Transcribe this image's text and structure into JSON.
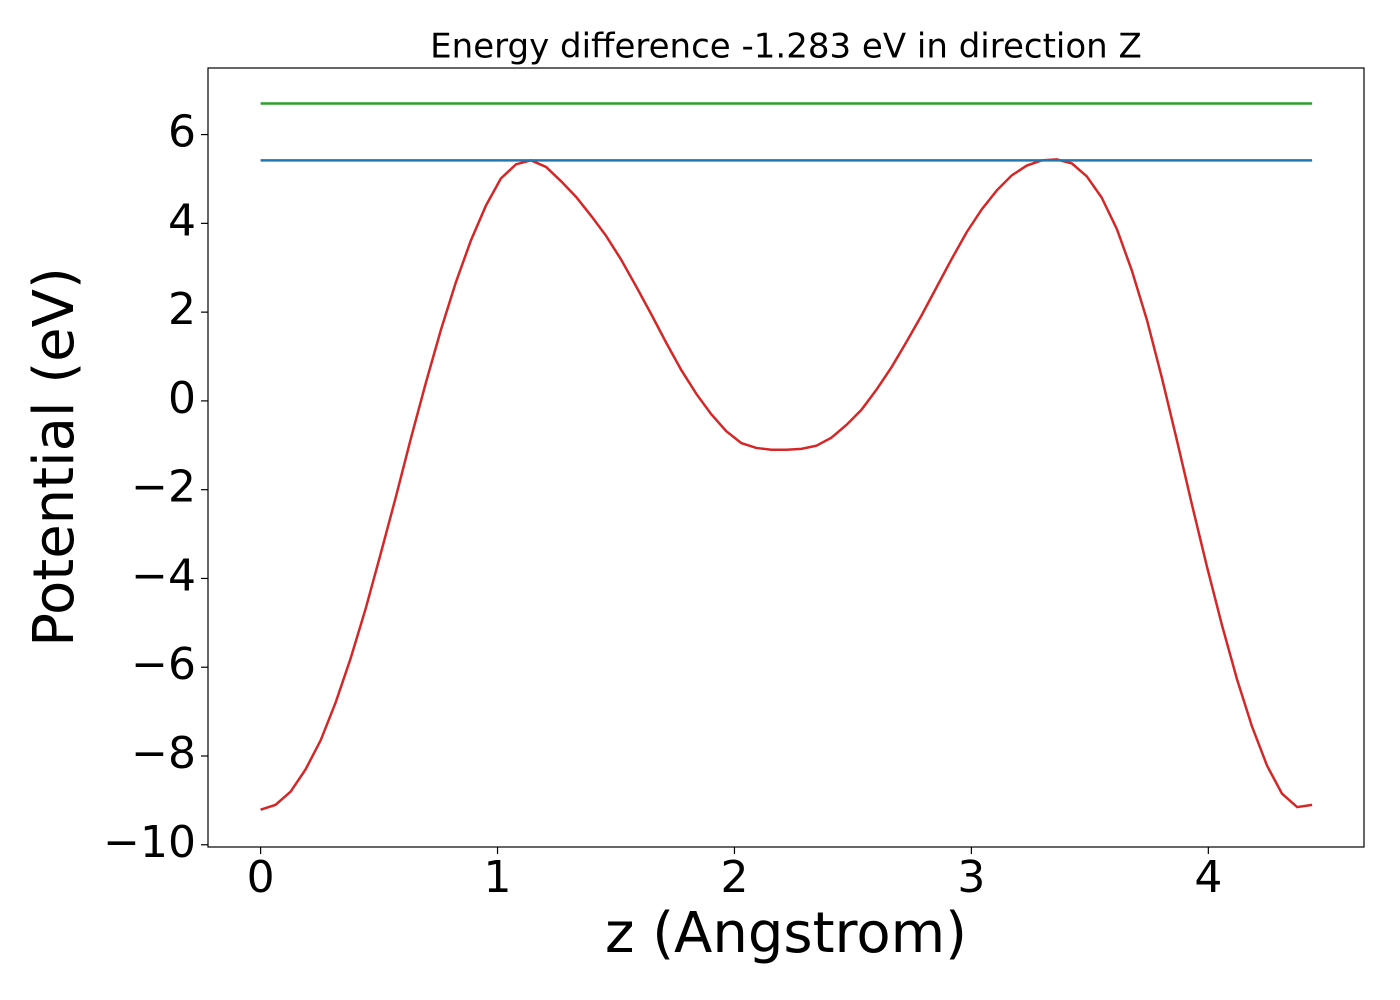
{
  "chart_data": {
    "type": "line",
    "title": "Energy difference -1.283 eV in direction Z",
    "xlabel": "z (Angstrom)",
    "ylabel": "Potential (eV)",
    "xlim": [
      -0.222,
      4.657
    ],
    "xticks": [
      0,
      1,
      2,
      3,
      4
    ],
    "ylim": [
      -10.05,
      7.5
    ],
    "yticks": [
      {
        "value": -10,
        "label": "−10"
      },
      {
        "value": -8,
        "label": "−8"
      },
      {
        "value": -6,
        "label": "−6"
      },
      {
        "value": -4,
        "label": "−4"
      },
      {
        "value": -2,
        "label": "−2"
      },
      0,
      2,
      4,
      6
    ],
    "series": [
      {
        "color": "#d62728",
        "x": [
          0,
          0.063,
          0.127,
          0.19,
          0.254,
          0.317,
          0.38,
          0.444,
          0.507,
          0.571,
          0.634,
          0.697,
          0.761,
          0.824,
          0.888,
          0.951,
          1.014,
          1.078,
          1.141,
          1.205,
          1.268,
          1.331,
          1.395,
          1.458,
          1.522,
          1.585,
          1.648,
          1.712,
          1.775,
          1.839,
          1.902,
          1.965,
          2.029,
          2.092,
          2.156,
          2.219,
          2.282,
          2.346,
          2.409,
          2.473,
          2.536,
          2.599,
          2.663,
          2.726,
          2.79,
          2.853,
          2.916,
          2.98,
          3.043,
          3.107,
          3.17,
          3.233,
          3.297,
          3.36,
          3.424,
          3.487,
          3.55,
          3.614,
          3.677,
          3.741,
          3.804,
          3.867,
          3.931,
          3.994,
          4.058,
          4.121,
          4.184,
          4.248,
          4.311,
          4.375,
          4.438
        ],
        "values": [
          -9.21,
          -9.1,
          -8.8,
          -8.3,
          -7.64,
          -6.79,
          -5.8,
          -4.67,
          -3.44,
          -2.16,
          -0.85,
          0.4,
          1.6,
          2.67,
          3.62,
          4.4,
          5.01,
          5.33,
          5.42,
          5.27,
          4.95,
          4.6,
          4.17,
          3.72,
          3.18,
          2.58,
          1.96,
          1.31,
          0.7,
          0.16,
          -0.3,
          -0.68,
          -0.95,
          -1.06,
          -1.1,
          -1.1,
          -1.08,
          -1.01,
          -0.83,
          -0.54,
          -0.2,
          0.25,
          0.76,
          1.33,
          1.93,
          2.56,
          3.19,
          3.8,
          4.31,
          4.74,
          5.08,
          5.3,
          5.42,
          5.44,
          5.35,
          5.06,
          4.58,
          3.87,
          2.94,
          1.82,
          0.52,
          -0.88,
          -2.34,
          -3.73,
          -5.06,
          -6.27,
          -7.33,
          -8.22,
          -8.85,
          -9.15,
          -9.1
        ]
      },
      {
        "color": "#1f77b4",
        "x": [
          0,
          4.438
        ],
        "values": [
          5.42,
          5.42
        ]
      },
      {
        "color": "#2ca02c",
        "x": [
          0,
          4.438
        ],
        "values": [
          6.7,
          6.7
        ]
      }
    ]
  }
}
